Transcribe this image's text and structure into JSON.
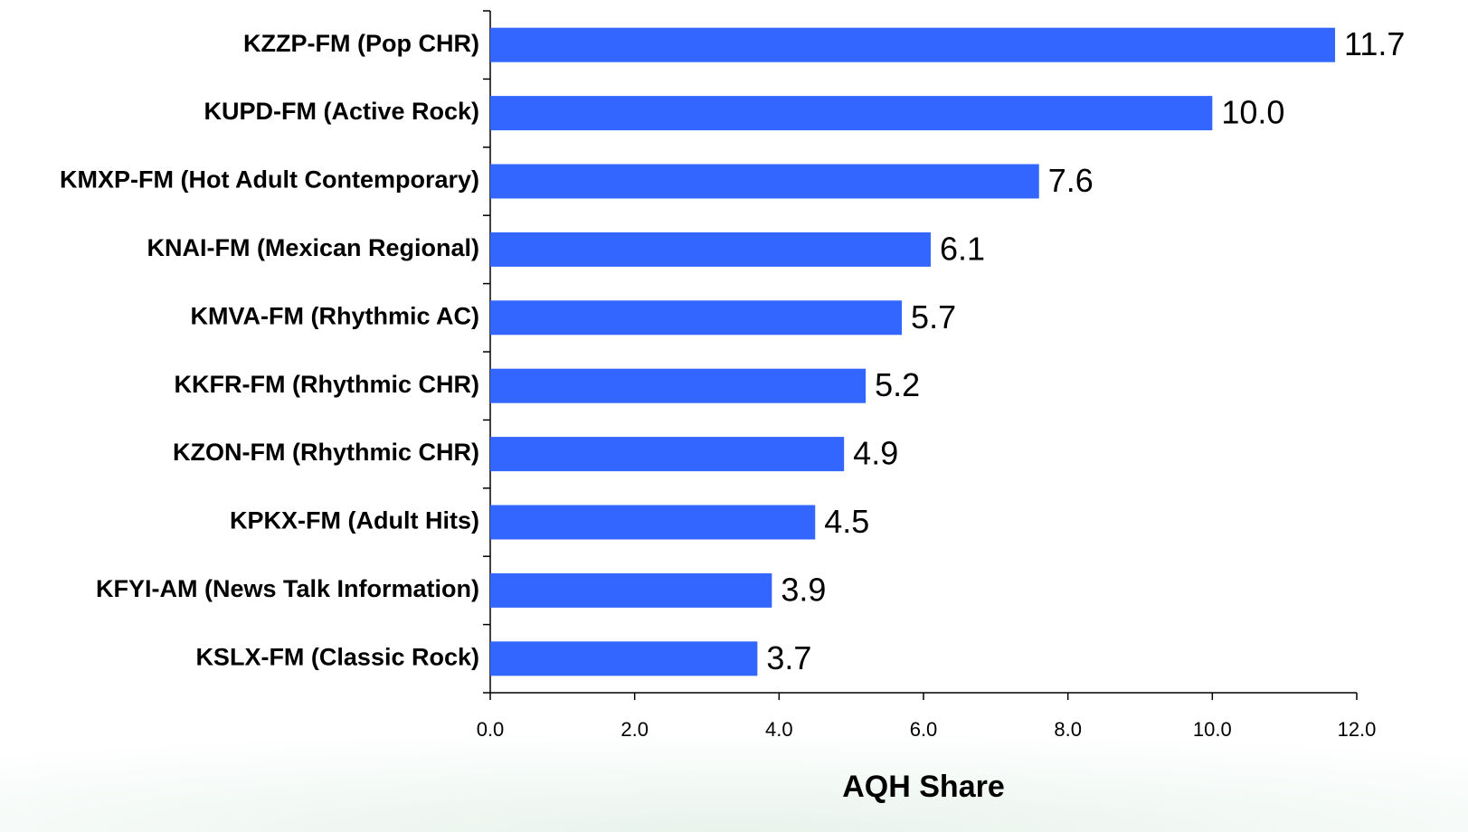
{
  "chart_data": {
    "type": "hbar",
    "x_label": "AQH Share",
    "categories": [
      "KZZP-FM (Pop CHR)",
      "KUPD-FM (Active Rock)",
      "KMXP-FM (Hot Adult Contemporary)",
      "KNAI-FM (Mexican Regional)",
      "KMVA-FM (Rhythmic AC)",
      "KKFR-FM (Rhythmic CHR)",
      "KZON-FM (Rhythmic CHR)",
      "KPKX-FM (Adult Hits)",
      "KFYI-AM (News Talk Information)",
      "KSLX-FM (Classic Rock)"
    ],
    "values": [
      11.7,
      10.0,
      7.6,
      6.1,
      5.7,
      5.2,
      4.9,
      4.5,
      3.9,
      3.7
    ],
    "value_labels": [
      "11.7",
      "10.0",
      "7.6",
      "6.1",
      "5.7",
      "5.2",
      "4.9",
      "4.5",
      "3.9",
      "3.7"
    ],
    "color": "#3366ff",
    "xlim": [
      0,
      12
    ],
    "xticks": [
      {
        "value": 0,
        "label": "0.0"
      },
      {
        "value": 2,
        "label": "2.0"
      },
      {
        "value": 4,
        "label": "4.0"
      },
      {
        "value": 6,
        "label": "6.0"
      },
      {
        "value": 8,
        "label": "8.0"
      },
      {
        "value": 10,
        "label": "10.0"
      },
      {
        "value": 12,
        "label": "12.0"
      }
    ]
  }
}
